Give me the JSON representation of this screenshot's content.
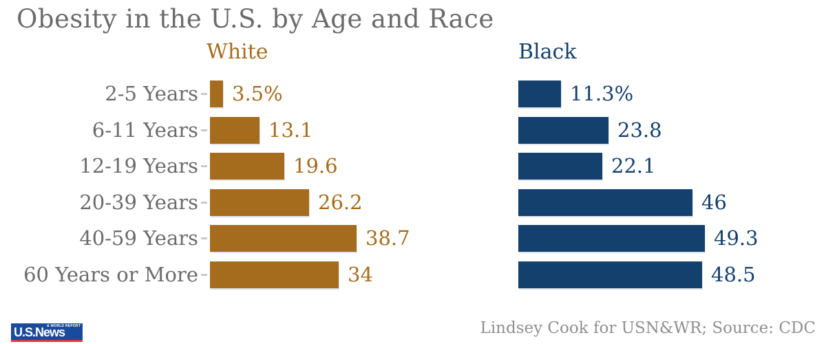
{
  "title": "Obesity in the U.S. by Age and Race",
  "chart_data": {
    "type": "bar",
    "orientation": "horizontal",
    "title": "Obesity in the U.S. by Age and Race",
    "categories": [
      "2-5 Years",
      "6-11 Years",
      "12-19 Years",
      "20-39 Years",
      "40-59 Years",
      "60 Years or More"
    ],
    "series": [
      {
        "name": "White",
        "color": "#a56c1e",
        "values": [
          3.5,
          13.1,
          19.6,
          26.2,
          38.7,
          34
        ],
        "value_labels": [
          "3.5%",
          "13.1",
          "19.6",
          "26.2",
          "38.7",
          "34"
        ]
      },
      {
        "name": "Black",
        "color": "#14406e",
        "values": [
          11.3,
          23.8,
          22.1,
          46,
          49.3,
          48.5
        ],
        "value_labels": [
          "11.3%",
          "23.8",
          "22.1",
          "46",
          "49.3",
          "48.5"
        ]
      }
    ],
    "xlim": [
      0,
      50
    ],
    "unit": "percent",
    "axes_visible": false,
    "grid": false,
    "legend_position": "column headers above each bar group",
    "value_labels_position": "right of bars, colored to match series"
  },
  "colors": {
    "title_text": "#6b6b6b",
    "category_text": "#6b6b6b",
    "white_series": "#a56c1e",
    "black_series": "#14406e",
    "tick": "#c9c9c9",
    "attribution_text": "#8f8f8f",
    "logo_blue": "#1a4a9c",
    "logo_red": "#dd3a3f",
    "background": "#ffffff"
  },
  "footer": {
    "attribution": "Lindsey Cook for USN&WR; Source: CDC",
    "logo_main": "U.S.News",
    "logo_sub": "& WORLD REPORT"
  }
}
